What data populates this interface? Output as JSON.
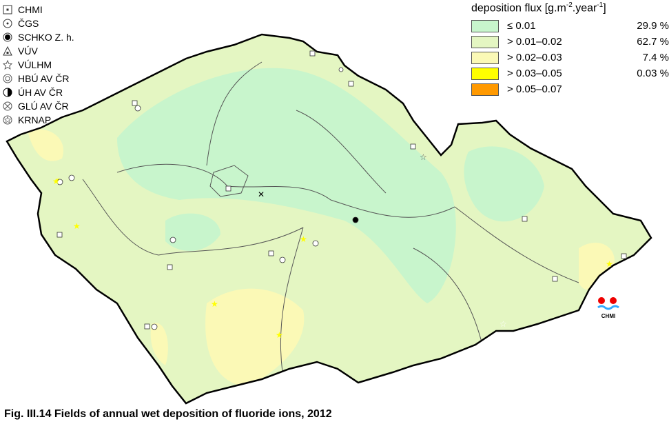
{
  "station_legend": [
    {
      "label": "CHMI",
      "icon": "square-dot-icon"
    },
    {
      "label": "ČGS",
      "icon": "circle-dot-icon"
    },
    {
      "label": "SCHKO Z. h.",
      "icon": "filled-circle-ring-icon"
    },
    {
      "label": "VÚV",
      "icon": "triangle-icon"
    },
    {
      "label": "VÚLHM",
      "icon": "star-icon"
    },
    {
      "label": "HBÚ AV ČR",
      "icon": "double-circle-icon"
    },
    {
      "label": "ÚH AV ČR",
      "icon": "half-circle-icon"
    },
    {
      "label": "GLÚ AV ČR",
      "icon": "circle-x-icon"
    },
    {
      "label": "KRNAP",
      "icon": "circle-star-icon"
    }
  ],
  "flux_legend": {
    "title_main": "deposition flux [g.m",
    "exp1": "-2",
    "mid": ".year",
    "exp2": "-1",
    "end": "]",
    "classes": [
      {
        "range": "≤ 0.01",
        "percent": "29.9 %",
        "color": "#c8f5cc"
      },
      {
        "range": "> 0.01–0.02",
        "percent": "62.7 %",
        "color": "#e4f6c2"
      },
      {
        "range": "> 0.02–0.03",
        "percent": "7.4 %",
        "color": "#fbf9b6"
      },
      {
        "range": "> 0.03–0.05",
        "percent": "0.03 %",
        "color": "#ffff00"
      },
      {
        "range": "> 0.05–0.07",
        "percent": "",
        "color": "#ff9900"
      }
    ]
  },
  "logo_text": "CHMI",
  "caption": "Fig. III.14  Fields of annual wet deposition of fluoride ions, 2012"
}
